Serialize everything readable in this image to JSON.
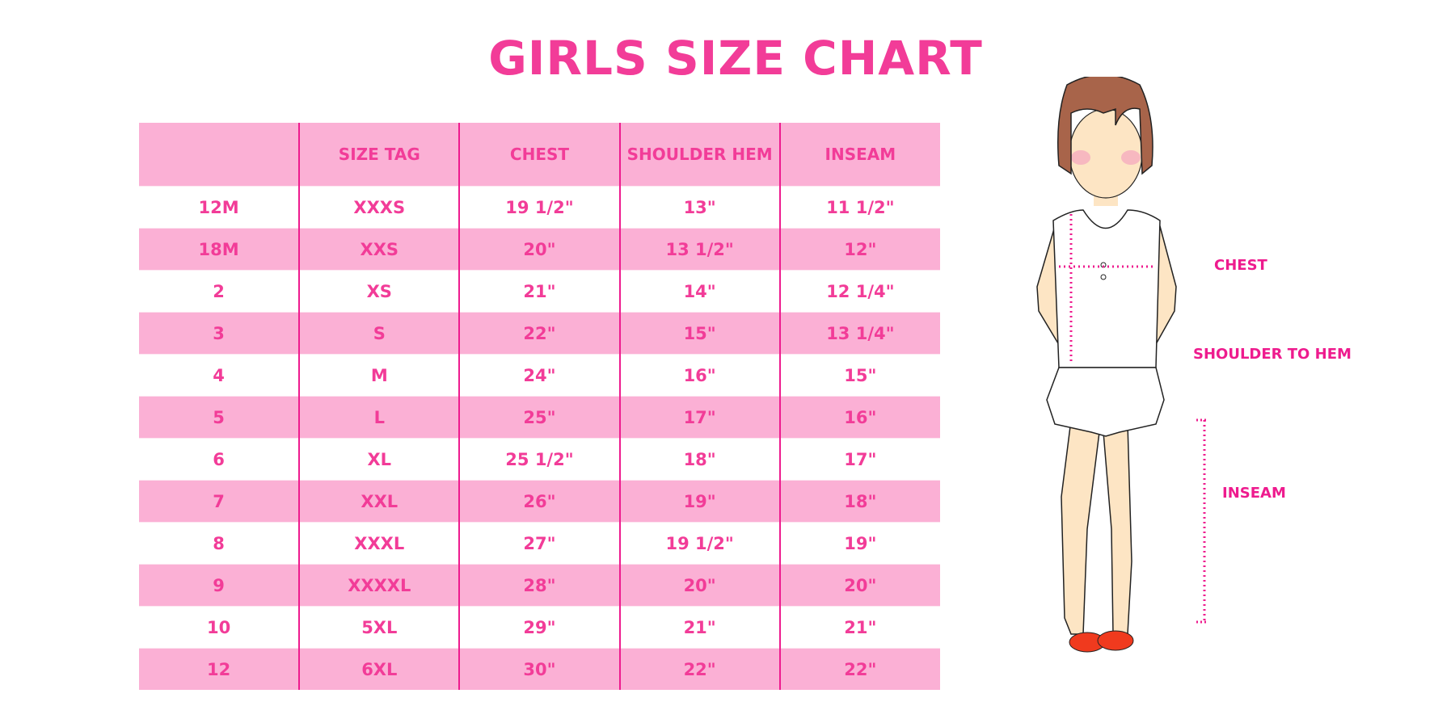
{
  "title": "GIRLS SIZE CHART",
  "table": {
    "headers": [
      "",
      "SIZE TAG",
      "CHEST",
      "SHOULDER HEM",
      "INSEAM"
    ],
    "rows": [
      [
        "12M",
        "XXXS",
        "19 1/2\"",
        "13\"",
        "11 1/2\""
      ],
      [
        "18M",
        "XXS",
        "20\"",
        "13 1/2\"",
        "12\""
      ],
      [
        "2",
        "XS",
        "21\"",
        "14\"",
        "12 1/4\""
      ],
      [
        "3",
        "S",
        "22\"",
        "15\"",
        "13 1/4\""
      ],
      [
        "4",
        "M",
        "24\"",
        "16\"",
        "15\""
      ],
      [
        "5",
        "L",
        "25\"",
        "17\"",
        "16\""
      ],
      [
        "6",
        "XL",
        "25 1/2\"",
        "18\"",
        "17\""
      ],
      [
        "7",
        "XXL",
        "26\"",
        "19\"",
        "18\""
      ],
      [
        "8",
        "XXXL",
        "27\"",
        "19 1/2\"",
        "19\""
      ],
      [
        "9",
        "XXXXL",
        "28\"",
        "20\"",
        "20\""
      ],
      [
        "10",
        "5XL",
        "29\"",
        "21\"",
        "21\""
      ],
      [
        "12",
        "6XL",
        "30\"",
        "22\"",
        "22\""
      ]
    ]
  },
  "figure": {
    "labels": {
      "chest": "CHEST",
      "shoulder_to_hem": "SHOULDER TO HEM",
      "inseam": "INSEAM"
    }
  },
  "colors": {
    "accent": "#f23c98",
    "row_pink": "#fbb0d5",
    "divider": "#ee1b8e"
  }
}
